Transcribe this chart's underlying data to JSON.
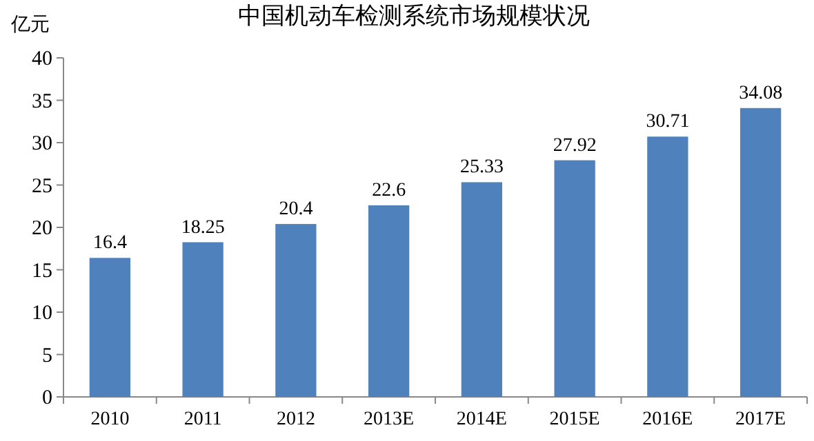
{
  "chart_data": {
    "type": "bar",
    "title": "中国机动车检测系统市场规模状况",
    "ylabel": "亿元",
    "categories": [
      "2010",
      "2011",
      "2012",
      "2013E",
      "2014E",
      "2015E",
      "2016E",
      "2017E"
    ],
    "values": [
      16.4,
      18.25,
      20.4,
      22.6,
      25.33,
      27.92,
      30.71,
      34.08
    ],
    "color": "#4f81bd",
    "ylim": [
      0,
      40
    ],
    "yticks": [
      0,
      5,
      10,
      15,
      20,
      25,
      30,
      35,
      40
    ],
    "data_labels": true,
    "grid": false
  }
}
